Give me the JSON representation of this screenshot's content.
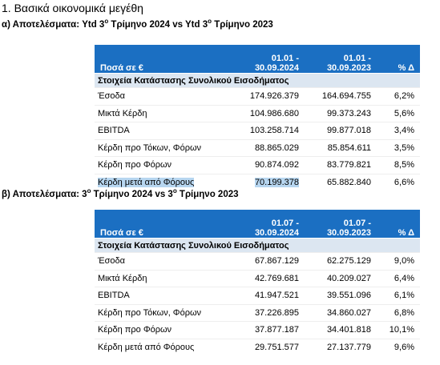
{
  "title": "1. Βασικά οικονομικά μεγέθη",
  "sections": [
    {
      "heading": [
        "α) Αποτελέσματα: Ytd 3",
        "ο",
        " Τρίμηνο 2024 vs Ytd 3",
        "ο",
        " Τρίμηνο 2023"
      ],
      "table": {
        "header": {
          "unit": "Ποσά σε €",
          "periods": [
            [
              "01.01 -",
              "30.09.2024"
            ],
            [
              "01.01 -",
              "30.09.2023"
            ]
          ],
          "change": "% Δ"
        },
        "group": "Στοιχεία Κατάστασης Συνολικού Εισοδήματος",
        "rows": [
          [
            "Έσοδα",
            "174.926.379",
            "164.694.755",
            "6,2%"
          ],
          [
            "Μικτά Κέρδη",
            "104.986.680",
            "99.373.243",
            "5,6%"
          ],
          [
            "EBITDA",
            "103.258.714",
            "99.877.018",
            "3,4%"
          ],
          [
            "Κέρδη προ Τόκων, Φόρων",
            "88.865.029",
            "85.854.611",
            "3,5%"
          ],
          [
            "Κέρδη προ Φόρων",
            "90.874.092",
            "83.779.821",
            "8,5%"
          ],
          [
            "Κέρδη μετά από Φόρους",
            "70.199.378",
            "65.882.840",
            "6,6%"
          ]
        ]
      }
    },
    {
      "heading": [
        "β) Αποτελέσματα: 3",
        "ο",
        " Τρίμηνο 2024 vs 3",
        "ο",
        " Τρίμηνο 2023"
      ],
      "table": {
        "header": {
          "unit": "Ποσά σε €",
          "periods": [
            [
              "01.07 -",
              "30.09.2024"
            ],
            [
              "01.07 -",
              "30.09.2023"
            ]
          ],
          "change": "% Δ"
        },
        "group": "Στοιχεία Κατάστασης Συνολικού Εισοδήματος",
        "rows": [
          [
            "Έσοδα",
            "67.867.129",
            "62.275.129",
            "9,0%"
          ],
          [
            "Μικτά Κέρδη",
            "42.769.681",
            "40.209.027",
            "6,4%"
          ],
          [
            "EBITDA",
            "41.947.521",
            "39.551.096",
            "6,1%"
          ],
          [
            "Κέρδη προ Τόκων, Φόρων",
            "37.226.895",
            "34.860.027",
            "6,8%"
          ],
          [
            "Κέρδη προ Φόρων",
            "37.877.187",
            "34.401.818",
            "10,1%"
          ],
          [
            "Κέρδη μετά από Φόρους",
            "29.751.577",
            "27.137.779",
            "9,6%"
          ]
        ]
      }
    }
  ]
}
